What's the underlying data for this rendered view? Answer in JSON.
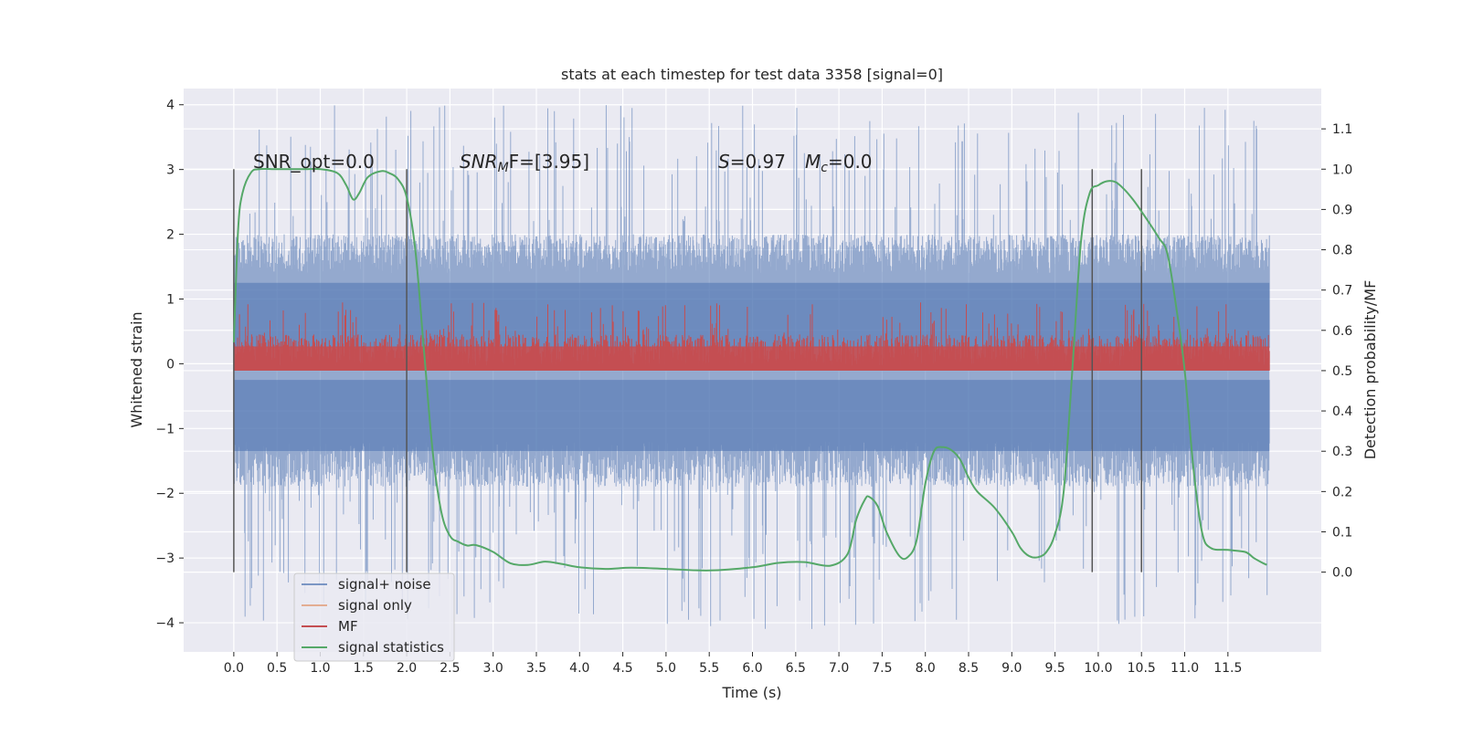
{
  "chart_data": {
    "type": "line",
    "title": "stats at each timestep for test data 3358 [signal=0]",
    "xlabel": "Time (s)",
    "ylabel": "Whitened strain",
    "y2label": "Detection probability/MF",
    "xlim": [
      -0.58,
      12.58
    ],
    "ylim": [
      -4.45,
      4.25
    ],
    "y2lim": [
      -0.198,
      1.2
    ],
    "x_ticks": [
      "0.0",
      "0.5",
      "1.0",
      "1.5",
      "2.0",
      "2.5",
      "3.0",
      "3.5",
      "4.0",
      "4.5",
      "5.0",
      "5.5",
      "6.0",
      "6.5",
      "7.0",
      "7.5",
      "8.0",
      "8.5",
      "9.0",
      "9.5",
      "10.0",
      "10.5",
      "11.0",
      "11.5"
    ],
    "y_ticks": [
      "4",
      "3",
      "2",
      "1",
      "0",
      "−1",
      "−2",
      "−3",
      "−4"
    ],
    "y2_ticks": [
      "1.1",
      "1.0",
      "0.9",
      "0.8",
      "0.7",
      "0.6",
      "0.5",
      "0.4",
      "0.3",
      "0.2",
      "0.1",
      "0.0"
    ],
    "grid": true,
    "legend_placement": "lower-left",
    "annotations": {
      "snr_opt": "SNR_opt=0.0",
      "snr_mf_main": "SNR",
      "snr_mf_sub": "M",
      "snr_mf_tail": "F=[3.95]",
      "s_label": "S",
      "s_value": "=0.97",
      "mc_label": "M",
      "mc_sub": "c",
      "mc_value": "=0.0"
    },
    "vertical_lines_x": [
      0.0,
      2.0,
      9.93,
      10.5
    ],
    "series": [
      {
        "name": "signal+ noise",
        "color": "#4c72b0",
        "axis": "left",
        "style": "noise band",
        "x_range": [
          0.0,
          11.98
        ],
        "typical_range": [
          -1.9,
          2.0
        ],
        "peak_max": 4.0,
        "peak_min": -4.1
      },
      {
        "name": "signal only",
        "color": "#dd8452",
        "axis": "left",
        "values": []
      },
      {
        "name": "MF",
        "color": "#c44e52",
        "axis": "right",
        "style": "noise band",
        "x_range": [
          0.0,
          11.98
        ],
        "typical_range": [
          0.51,
          0.59
        ],
        "peak_max": 0.67
      },
      {
        "name": "signal statistics",
        "color": "#55a868",
        "axis": "right",
        "x": [
          0.0,
          0.05,
          0.1,
          0.2,
          0.3,
          0.5,
          0.8,
          1.0,
          1.2,
          1.3,
          1.38,
          1.45,
          1.55,
          1.7,
          1.8,
          1.9,
          2.0,
          2.1,
          2.2,
          2.3,
          2.4,
          2.5,
          2.6,
          2.7,
          2.8,
          3.0,
          3.2,
          3.4,
          3.6,
          3.8,
          4.0,
          4.3,
          4.6,
          5.0,
          5.5,
          6.0,
          6.3,
          6.6,
          6.9,
          7.1,
          7.2,
          7.3,
          7.35,
          7.45,
          7.55,
          7.7,
          7.8,
          7.9,
          8.0,
          8.1,
          8.2,
          8.3,
          8.4,
          8.5,
          8.6,
          8.8,
          9.0,
          9.1,
          9.2,
          9.3,
          9.4,
          9.5,
          9.6,
          9.7,
          9.8,
          9.9,
          10.0,
          10.1,
          10.2,
          10.3,
          10.4,
          10.5,
          10.7,
          10.8,
          10.9,
          11.0,
          11.1,
          11.2,
          11.3,
          11.5,
          11.7,
          11.8,
          11.9,
          11.95
        ],
        "values": [
          0.57,
          0.85,
          0.94,
          0.992,
          1.0,
          1.0,
          1.0,
          1.0,
          0.99,
          0.96,
          0.925,
          0.94,
          0.98,
          0.995,
          0.99,
          0.975,
          0.93,
          0.8,
          0.55,
          0.3,
          0.15,
          0.09,
          0.075,
          0.066,
          0.067,
          0.05,
          0.022,
          0.018,
          0.026,
          0.02,
          0.012,
          0.008,
          0.011,
          0.008,
          0.004,
          0.012,
          0.023,
          0.025,
          0.016,
          0.045,
          0.13,
          0.18,
          0.187,
          0.163,
          0.1,
          0.04,
          0.038,
          0.08,
          0.22,
          0.3,
          0.31,
          0.303,
          0.28,
          0.235,
          0.2,
          0.16,
          0.1,
          0.06,
          0.04,
          0.037,
          0.05,
          0.095,
          0.2,
          0.5,
          0.82,
          0.94,
          0.96,
          0.97,
          0.968,
          0.95,
          0.925,
          0.895,
          0.83,
          0.79,
          0.66,
          0.5,
          0.26,
          0.1,
          0.06,
          0.055,
          0.05,
          0.035,
          0.023,
          0.018
        ]
      }
    ]
  }
}
